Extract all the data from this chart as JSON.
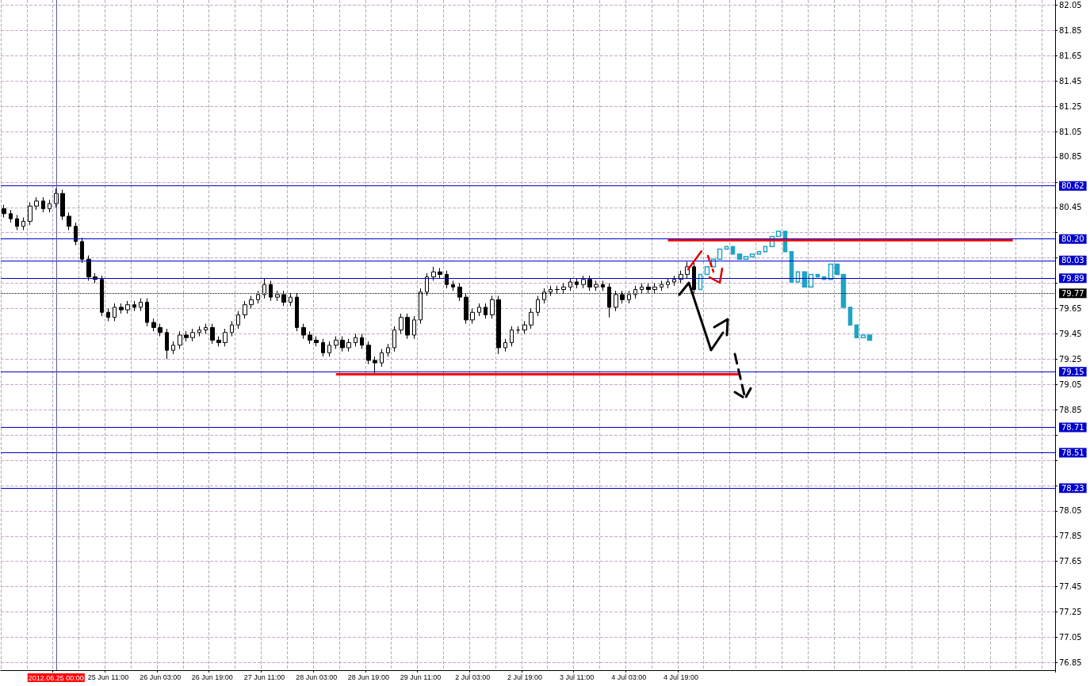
{
  "chart_data": {
    "type": "candlestick",
    "categories": [
      null,
      null,
      null,
      null,
      null,
      null,
      null,
      null,
      "2012.06.25 00:00",
      null,
      null,
      null,
      null,
      null,
      null,
      null,
      "25 Jun 11:00",
      null,
      null,
      null,
      null,
      null,
      null,
      null,
      "26 Jun 03:00",
      null,
      null,
      null,
      null,
      null,
      null,
      null,
      "26 Jun 19:00",
      null,
      null,
      null,
      null,
      null,
      null,
      null,
      "27 Jun 11:00",
      null,
      null,
      null,
      null,
      null,
      null,
      null,
      "28 Jun 03:00",
      null,
      null,
      null,
      null,
      null,
      null,
      null,
      "28 Jun 19:00",
      null,
      null,
      null,
      null,
      null,
      null,
      null,
      "29 Jun 11:00",
      null,
      null,
      null,
      null,
      null,
      null,
      null,
      "2 Jul 03:00",
      null,
      null,
      null,
      null,
      null,
      null,
      null,
      "2 Jul 19:00",
      null,
      null,
      null,
      null,
      null,
      null,
      null,
      "3 Jul 11:00",
      null,
      null,
      null,
      null,
      null,
      null,
      null,
      "4 Jul 03:00",
      null,
      null,
      null,
      null,
      null,
      null,
      null,
      "4 Jul 19:00",
      null,
      null,
      null,
      null,
      null,
      null,
      null,
      null,
      null,
      null,
      null,
      null,
      null,
      null,
      null,
      null,
      null,
      null,
      null,
      null,
      null,
      null,
      null,
      null,
      null,
      null,
      null,
      null,
      null,
      null,
      null,
      null,
      null,
      null,
      null,
      null,
      null,
      null,
      null,
      null,
      null,
      null,
      null,
      null,
      null,
      null,
      null,
      null,
      null,
      null,
      null,
      null,
      null,
      null,
      null,
      null,
      null
    ],
    "series": [
      {
        "color": "#000000",
        "ohlc": [
          [
            80.44,
            80.47,
            80.37,
            80.4
          ],
          [
            80.4,
            80.43,
            80.33,
            80.36
          ],
          [
            80.36,
            80.39,
            80.27,
            80.3
          ],
          [
            80.3,
            80.37,
            80.27,
            80.34
          ],
          [
            80.34,
            80.49,
            80.31,
            80.46
          ],
          [
            80.46,
            80.53,
            80.43,
            80.5
          ],
          [
            80.5,
            80.53,
            80.41,
            80.44
          ],
          [
            80.44,
            80.51,
            80.41,
            80.48
          ],
          [
            80.48,
            80.6,
            80.45,
            80.56
          ],
          [
            80.56,
            80.59,
            80.35,
            80.38
          ],
          [
            80.38,
            80.41,
            80.27,
            80.3
          ],
          [
            80.3,
            80.33,
            80.15,
            80.18
          ],
          [
            80.18,
            80.21,
            80.01,
            80.04
          ],
          [
            80.04,
            80.07,
            79.87,
            79.9
          ],
          [
            79.9,
            79.93,
            79.85,
            79.88
          ],
          [
            79.88,
            79.91,
            79.59,
            79.62
          ],
          [
            79.62,
            79.65,
            79.55,
            79.58
          ],
          [
            79.58,
            79.69,
            79.55,
            79.66
          ],
          [
            79.66,
            79.69,
            79.61,
            79.64
          ],
          [
            79.64,
            79.71,
            79.61,
            79.68
          ],
          [
            79.68,
            79.71,
            79.63,
            79.66
          ],
          [
            79.66,
            79.73,
            79.63,
            79.7
          ],
          [
            79.7,
            79.73,
            79.51,
            79.54
          ],
          [
            79.54,
            79.57,
            79.47,
            79.5
          ],
          [
            79.5,
            79.53,
            79.43,
            79.46
          ],
          [
            79.46,
            79.49,
            79.25,
            79.32
          ],
          [
            79.32,
            79.39,
            79.29,
            79.36
          ],
          [
            79.36,
            79.47,
            79.33,
            79.44
          ],
          [
            79.44,
            79.47,
            79.39,
            79.42
          ],
          [
            79.42,
            79.49,
            79.39,
            79.46
          ],
          [
            79.46,
            79.51,
            79.43,
            79.48
          ],
          [
            79.48,
            79.53,
            79.45,
            79.5
          ],
          [
            79.5,
            79.53,
            79.37,
            79.4
          ],
          [
            79.4,
            79.43,
            79.35,
            79.38
          ],
          [
            79.38,
            79.49,
            79.35,
            79.46
          ],
          [
            79.46,
            79.55,
            79.43,
            79.52
          ],
          [
            79.52,
            79.63,
            79.49,
            79.6
          ],
          [
            79.6,
            79.71,
            79.57,
            79.68
          ],
          [
            79.68,
            79.75,
            79.65,
            79.72
          ],
          [
            79.72,
            79.79,
            79.69,
            79.76
          ],
          [
            79.76,
            79.89,
            79.73,
            79.84
          ],
          [
            79.84,
            79.87,
            79.71,
            79.74
          ],
          [
            79.74,
            79.79,
            79.71,
            79.76
          ],
          [
            79.76,
            79.79,
            79.67,
            79.7
          ],
          [
            79.7,
            79.77,
            79.67,
            79.74
          ],
          [
            79.74,
            79.77,
            79.47,
            79.5
          ],
          [
            79.5,
            79.53,
            79.41,
            79.44
          ],
          [
            79.44,
            79.47,
            79.37,
            79.4
          ],
          [
            79.4,
            79.43,
            79.35,
            79.38
          ],
          [
            79.38,
            79.41,
            79.27,
            79.3
          ],
          [
            79.3,
            79.39,
            79.27,
            79.36
          ],
          [
            79.36,
            79.43,
            79.33,
            79.4
          ],
          [
            79.4,
            79.43,
            79.31,
            79.34
          ],
          [
            79.34,
            79.41,
            79.31,
            79.38
          ],
          [
            79.38,
            79.45,
            79.35,
            79.42
          ],
          [
            79.42,
            79.45,
            79.33,
            79.36
          ],
          [
            79.36,
            79.39,
            79.21,
            79.24
          ],
          [
            79.24,
            79.27,
            79.14,
            79.22
          ],
          [
            79.22,
            79.33,
            79.19,
            79.3
          ],
          [
            79.3,
            79.37,
            79.27,
            79.34
          ],
          [
            79.34,
            79.51,
            79.31,
            79.48
          ],
          [
            79.48,
            79.61,
            79.45,
            79.58
          ],
          [
            79.58,
            79.61,
            79.41,
            79.44
          ],
          [
            79.44,
            79.59,
            79.41,
            79.56
          ],
          [
            79.56,
            79.81,
            79.53,
            79.78
          ],
          [
            79.78,
            79.93,
            79.75,
            79.9
          ],
          [
            79.9,
            79.98,
            79.87,
            79.94
          ],
          [
            79.94,
            79.97,
            79.89,
            79.92
          ],
          [
            79.92,
            79.95,
            79.81,
            79.84
          ],
          [
            79.84,
            79.87,
            79.79,
            79.82
          ],
          [
            79.82,
            79.85,
            79.71,
            79.74
          ],
          [
            79.74,
            79.77,
            79.53,
            79.56
          ],
          [
            79.56,
            79.65,
            79.53,
            79.62
          ],
          [
            79.62,
            79.69,
            79.59,
            79.66
          ],
          [
            79.66,
            79.69,
            79.57,
            79.6
          ],
          [
            79.6,
            79.75,
            79.57,
            79.72
          ],
          [
            79.72,
            79.75,
            79.29,
            79.34
          ],
          [
            79.34,
            79.41,
            79.31,
            79.38
          ],
          [
            79.38,
            79.51,
            79.35,
            79.48
          ],
          [
            79.48,
            79.51,
            79.45,
            79.48
          ],
          [
            79.48,
            79.55,
            79.45,
            79.52
          ],
          [
            79.52,
            79.65,
            79.49,
            79.62
          ],
          [
            79.62,
            79.75,
            79.59,
            79.72
          ],
          [
            79.72,
            79.81,
            79.69,
            79.78
          ],
          [
            79.78,
            79.83,
            79.75,
            79.8
          ],
          [
            79.8,
            79.83,
            79.77,
            79.8
          ],
          [
            79.8,
            79.85,
            79.77,
            79.82
          ],
          [
            79.82,
            79.89,
            79.79,
            79.86
          ],
          [
            79.86,
            79.89,
            79.81,
            79.84
          ],
          [
            79.84,
            79.91,
            79.81,
            79.88
          ],
          [
            79.88,
            79.91,
            79.79,
            79.82
          ],
          [
            79.82,
            79.87,
            79.79,
            79.84
          ],
          [
            79.84,
            79.87,
            79.79,
            79.82
          ],
          [
            79.82,
            79.85,
            79.58,
            79.66
          ],
          [
            79.66,
            79.79,
            79.63,
            79.76
          ],
          [
            79.76,
            79.79,
            79.69,
            79.72
          ],
          [
            79.72,
            79.79,
            79.69,
            79.76
          ],
          [
            79.76,
            79.83,
            79.73,
            79.8
          ],
          [
            79.8,
            79.85,
            79.77,
            79.82
          ],
          [
            79.82,
            79.85,
            79.77,
            79.8
          ],
          [
            79.8,
            79.85,
            79.77,
            79.82
          ],
          [
            79.82,
            79.87,
            79.79,
            79.84
          ],
          [
            79.84,
            79.89,
            79.81,
            79.86
          ],
          [
            79.86,
            79.91,
            79.83,
            79.88
          ],
          [
            79.88,
            79.95,
            79.85,
            79.92
          ],
          [
            79.92,
            80.02,
            79.89,
            79.98
          ],
          [
            79.98,
            80.01,
            79.77,
            79.8
          ],
          null,
          null,
          null,
          null,
          null,
          null,
          null,
          null,
          null,
          null,
          null,
          null,
          null,
          null,
          null,
          null,
          null,
          null,
          null,
          null,
          null,
          null,
          null,
          null,
          null,
          null,
          null,
          null,
          null,
          null,
          null,
          null,
          null,
          null,
          null,
          null,
          null,
          null,
          null,
          null,
          null,
          null,
          null,
          null,
          null,
          null,
          null,
          null,
          null,
          null,
          null,
          null,
          null,
          null,
          null
        ]
      },
      {
        "color": "#1fa3c4",
        "ohlc": [
          null,
          null,
          null,
          null,
          null,
          null,
          null,
          null,
          null,
          null,
          null,
          null,
          null,
          null,
          null,
          null,
          null,
          null,
          null,
          null,
          null,
          null,
          null,
          null,
          null,
          null,
          null,
          null,
          null,
          null,
          null,
          null,
          null,
          null,
          null,
          null,
          null,
          null,
          null,
          null,
          null,
          null,
          null,
          null,
          null,
          null,
          null,
          null,
          null,
          null,
          null,
          null,
          null,
          null,
          null,
          null,
          null,
          null,
          null,
          null,
          null,
          null,
          null,
          null,
          null,
          null,
          null,
          null,
          null,
          null,
          null,
          null,
          null,
          null,
          null,
          null,
          null,
          null,
          null,
          null,
          null,
          null,
          null,
          null,
          null,
          null,
          null,
          null,
          null,
          null,
          null,
          null,
          null,
          null,
          null,
          null,
          null,
          null,
          null,
          null,
          null,
          null,
          null,
          null,
          null,
          null,
          null,
          [
            79.8,
            79.92,
            79.8,
            79.92
          ],
          [
            79.92,
            79.98,
            79.92,
            79.98
          ],
          [
            79.98,
            80.04,
            79.98,
            80.04
          ],
          [
            80.04,
            80.12,
            80.04,
            80.12
          ],
          [
            80.12,
            80.14,
            80.12,
            80.14
          ],
          [
            80.14,
            80.14,
            80.08,
            80.08
          ],
          [
            80.08,
            80.08,
            80.04,
            80.04
          ],
          [
            80.04,
            80.06,
            80.04,
            80.06
          ],
          [
            80.06,
            80.08,
            80.06,
            80.08
          ],
          [
            80.08,
            80.1,
            80.08,
            80.1
          ],
          [
            80.1,
            80.14,
            80.1,
            80.14
          ],
          [
            80.14,
            80.22,
            80.14,
            80.22
          ],
          [
            80.22,
            80.26,
            80.22,
            80.26
          ],
          [
            80.26,
            80.26,
            80.1,
            80.1
          ],
          [
            80.1,
            80.1,
            79.86,
            79.86
          ],
          [
            79.86,
            79.94,
            79.86,
            79.94
          ],
          [
            79.94,
            79.94,
            79.82,
            79.82
          ],
          [
            79.82,
            79.92,
            79.82,
            79.92
          ],
          [
            79.92,
            79.92,
            79.9,
            79.9
          ],
          [
            79.9,
            79.9,
            79.88,
            79.88
          ],
          [
            79.88,
            80.0,
            79.88,
            80.0
          ],
          [
            80.0,
            80.0,
            79.92,
            79.92
          ],
          [
            79.92,
            79.92,
            79.66,
            79.66
          ],
          [
            79.66,
            79.66,
            79.52,
            79.52
          ],
          [
            79.52,
            79.52,
            79.42,
            79.42
          ],
          [
            79.42,
            79.44,
            79.42,
            79.44
          ],
          [
            79.44,
            79.44,
            79.4,
            79.4
          ],
          null,
          null,
          null,
          null,
          null,
          null,
          null,
          null,
          null,
          null,
          null,
          null,
          null,
          null,
          null,
          null,
          null,
          null,
          null,
          null,
          null,
          null,
          null,
          null,
          null,
          null,
          null,
          null
        ]
      },
      {
        "type": "line",
        "color": "#ff0000",
        "values": [
          null,
          null,
          null,
          null,
          null,
          null,
          null,
          null,
          null,
          null,
          null,
          null,
          null,
          null,
          null,
          null,
          null,
          null,
          null,
          null,
          null,
          null,
          null,
          null,
          null,
          null,
          null,
          null,
          null,
          null,
          null,
          null,
          null,
          null,
          null,
          null,
          null,
          null,
          null,
          null,
          null,
          null,
          null,
          null,
          null,
          null,
          null,
          null,
          null,
          null,
          null,
          79.13,
          null,
          null,
          null,
          null,
          null,
          null,
          null,
          null,
          null,
          null,
          null,
          null,
          null,
          null,
          null,
          null,
          null,
          null,
          null,
          null,
          null,
          null,
          null,
          null,
          null,
          null,
          null,
          null,
          null,
          null,
          null,
          null,
          null,
          null,
          null,
          null,
          null,
          null,
          null,
          null,
          null,
          null,
          null,
          null,
          null,
          null,
          null,
          null,
          null,
          null,
          null,
          null,
          null,
          null,
          null,
          null,
          null,
          null,
          null,
          null,
          null,
          79.13,
          null,
          null,
          null,
          null,
          null,
          null,
          null,
          null,
          null,
          null,
          null,
          null,
          null,
          null,
          null,
          null,
          null,
          null,
          null,
          null,
          null,
          null,
          null,
          null,
          null,
          null,
          null,
          null,
          null,
          null,
          null,
          null,
          null,
          null,
          null,
          null,
          null,
          null,
          null,
          null,
          null,
          null,
          null,
          null,
          null,
          null,
          null,
          null
        ]
      },
      {
        "type": "line",
        "color": "#ff0000",
        "values": [
          null,
          null,
          null,
          null,
          null,
          null,
          null,
          null,
          null,
          null,
          null,
          null,
          null,
          null,
          null,
          null,
          null,
          null,
          null,
          null,
          null,
          null,
          null,
          null,
          null,
          null,
          null,
          null,
          null,
          null,
          null,
          null,
          null,
          null,
          null,
          null,
          null,
          null,
          null,
          null,
          null,
          null,
          null,
          null,
          null,
          null,
          null,
          null,
          null,
          null,
          null,
          null,
          null,
          null,
          null,
          null,
          null,
          null,
          null,
          null,
          null,
          null,
          null,
          null,
          null,
          null,
          null,
          null,
          null,
          null,
          null,
          null,
          null,
          null,
          null,
          null,
          null,
          null,
          null,
          null,
          null,
          null,
          null,
          null,
          null,
          null,
          null,
          null,
          null,
          null,
          null,
          null,
          null,
          null,
          null,
          null,
          null,
          null,
          null,
          null,
          null,
          null,
          80.19,
          null,
          null,
          null,
          null,
          null,
          null,
          null,
          null,
          null,
          null,
          null,
          null,
          null,
          null,
          null,
          null,
          null,
          null,
          null,
          null,
          null,
          null,
          null,
          null,
          null,
          null,
          null,
          null,
          null,
          null,
          null,
          null,
          null,
          null,
          null,
          null,
          null,
          null,
          null,
          null,
          null,
          null,
          null,
          null,
          null,
          null,
          null,
          null,
          null,
          null,
          null,
          null,
          80.19,
          null,
          null,
          null,
          null,
          null,
          null
        ]
      }
    ],
    "ylim": [
      76.79,
      82.09
    ],
    "yticks": [
      82.05,
      81.85,
      81.65,
      81.45,
      81.25,
      81.05,
      80.85,
      {
        "value": 80.65,
        "label": null
      },
      80.45,
      {
        "value": 80.25,
        "label": null
      },
      {
        "value": 80.05,
        "label": null
      },
      {
        "value": 79.85,
        "label": null
      },
      79.65,
      79.45,
      79.25,
      79.05,
      78.85,
      {
        "value": 78.65,
        "label": null
      },
      {
        "value": 78.45,
        "label": null
      },
      {
        "value": 78.25,
        "label": null
      },
      78.05,
      77.85,
      77.65,
      77.45,
      77.25,
      77.05,
      76.85
    ],
    "ref_lines": [
      {
        "axis": "y",
        "value": 80.62,
        "label": "80.62",
        "color": "#0000cc"
      },
      {
        "axis": "y",
        "value": 80.2,
        "label": "80.20",
        "color": "#0000cc"
      },
      {
        "axis": "y",
        "value": 80.03,
        "label": "80.03",
        "color": "#0000cc"
      },
      {
        "axis": "y",
        "value": 79.89,
        "label": "79.89",
        "color": "#0000cc"
      },
      {
        "axis": "y",
        "value": 79.77,
        "label": "79.77",
        "color": "#000000",
        "line_style": "dotted"
      },
      {
        "axis": "y",
        "value": 79.15,
        "label": "79.15",
        "color": "#0000cc"
      },
      {
        "axis": "y",
        "value": 78.71,
        "label": "78.71",
        "color": "#0000cc"
      },
      {
        "axis": "y",
        "value": 78.51,
        "label": "78.51",
        "color": "#0000cc"
      },
      {
        "axis": "y",
        "value": 78.23,
        "label": "78.23",
        "color": "#0000cc"
      },
      {
        "axis": "x",
        "value": "2012.06.25 00:00",
        "label": null,
        "color": "#5a5a8a"
      }
    ],
    "grid": true,
    "marker": "none"
  }
}
